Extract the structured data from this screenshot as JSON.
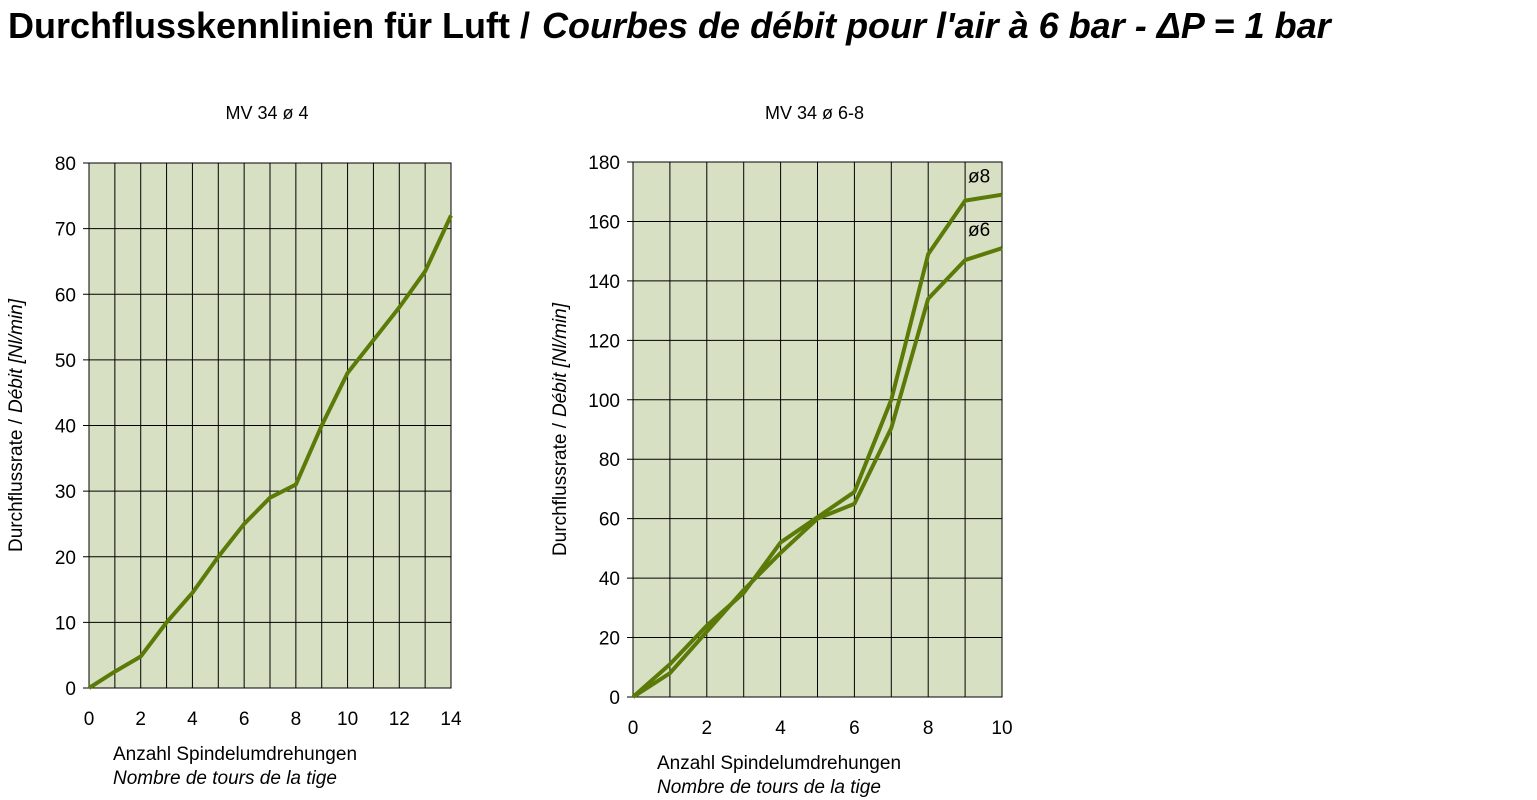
{
  "title_de": "Durchflusskennlinien für Luft /",
  "title_fr": "Courbes de débit pour l'air à 6 bar - ΔP = 1 bar",
  "chart_data": [
    {
      "type": "line",
      "title": "MV 34 ø 4",
      "ylabel": [
        "Durchflussrate /",
        "Débit [Nl/min]"
      ],
      "xlabel": [
        "Anzahl Spindelumdrehungen",
        "Nombre de tours de la tige"
      ],
      "x": [
        0,
        1,
        2,
        3,
        4,
        5,
        6,
        7,
        8,
        9,
        10,
        11,
        12,
        13,
        14
      ],
      "series": [
        {
          "name": null,
          "color": "#5b7a07",
          "values": [
            0,
            2.5,
            4.8,
            10,
            14.5,
            20,
            25,
            29,
            31,
            40,
            48,
            53,
            58,
            63.5,
            72
          ]
        }
      ],
      "xlim": [
        0,
        14
      ],
      "xticks": [
        0,
        2,
        4,
        6,
        8,
        10,
        12,
        14
      ],
      "xminor": [
        1,
        3,
        5,
        7,
        9,
        11,
        13
      ],
      "ylim": [
        0,
        80
      ],
      "yticks": [
        0,
        10,
        20,
        30,
        40,
        50,
        60,
        70,
        80
      ],
      "grid": true,
      "background": "#d7e0c3"
    },
    {
      "type": "line",
      "title": "MV 34 ø 6-8",
      "ylabel": [
        "Durchflussrate /",
        "Débit [Nl/min]"
      ],
      "xlabel": [
        "Anzahl Spindelumdrehungen",
        "Nombre de tours de la tige"
      ],
      "x": [
        0,
        1,
        2,
        3,
        4,
        5,
        6,
        7,
        8,
        9,
        10
      ],
      "series": [
        {
          "name": "ø8",
          "color": "#5b7a07",
          "values": [
            0,
            11,
            24,
            35,
            52,
            60.5,
            69,
            100,
            149,
            167,
            169
          ]
        },
        {
          "name": "ø6",
          "color": "#5b7a07",
          "values": [
            0,
            8,
            22,
            36,
            48.5,
            60,
            65,
            90.5,
            134,
            147,
            151
          ]
        }
      ],
      "xlim": [
        0,
        10
      ],
      "xticks": [
        0,
        2,
        4,
        6,
        8,
        10
      ],
      "xminor": [
        1,
        3,
        5,
        7,
        9
      ],
      "ylim": [
        0,
        180
      ],
      "yticks": [
        0,
        20,
        40,
        60,
        80,
        100,
        120,
        140,
        160,
        180
      ],
      "grid": true,
      "background": "#d7e0c3"
    }
  ]
}
